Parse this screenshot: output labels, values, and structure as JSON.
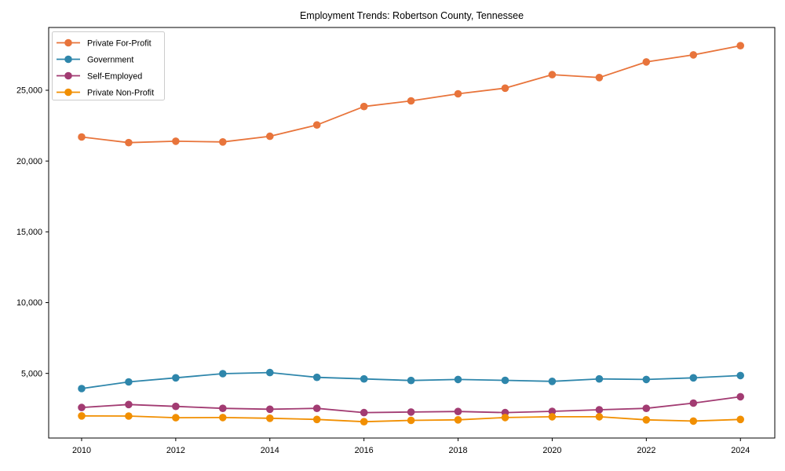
{
  "chart_data": {
    "type": "line",
    "title": "Employment Trends: Robertson County, Tennessee",
    "xlabel": "",
    "ylabel": "",
    "x": [
      2010,
      2011,
      2012,
      2013,
      2014,
      2015,
      2016,
      2017,
      2018,
      2019,
      2020,
      2021,
      2022,
      2023,
      2024
    ],
    "xticks": [
      2010,
      2012,
      2014,
      2016,
      2018,
      2020,
      2022,
      2024
    ],
    "xtick_labels": [
      "2010",
      "2012",
      "2014",
      "2016",
      "2018",
      "2020",
      "2022",
      "2024"
    ],
    "yticks": [
      5000,
      10000,
      15000,
      20000,
      25000
    ],
    "ytick_labels": [
      "5,000",
      "10,000",
      "15,000",
      "20,000",
      "25,000"
    ],
    "xlim": [
      2009.3,
      2024.73
    ],
    "ylim": [
      435,
      29435
    ],
    "grid": false,
    "legend_position": "upper-left",
    "marker": "circle",
    "axis_color": "#000000",
    "legend_border_color": "#cccccc",
    "series": [
      {
        "name": "Private For-Profit",
        "color": "#E8743B",
        "values": [
          21700,
          21300,
          21400,
          21350,
          21750,
          22550,
          23850,
          24250,
          24750,
          25150,
          26100,
          25900,
          27000,
          27500,
          28150
        ]
      },
      {
        "name": "Government",
        "color": "#2E86AB",
        "values": [
          3930,
          4400,
          4690,
          4980,
          5060,
          4720,
          4610,
          4500,
          4570,
          4510,
          4440,
          4610,
          4570,
          4690,
          4850
        ]
      },
      {
        "name": "Self-Employed",
        "color": "#A23B72",
        "values": [
          2590,
          2800,
          2670,
          2530,
          2470,
          2530,
          2230,
          2270,
          2310,
          2230,
          2320,
          2430,
          2530,
          2900,
          3350
        ]
      },
      {
        "name": "Private Non-Profit",
        "color": "#F18F01",
        "values": [
          2000,
          1990,
          1870,
          1880,
          1830,
          1750,
          1590,
          1680,
          1720,
          1880,
          1940,
          1940,
          1720,
          1630,
          1750
        ]
      }
    ]
  }
}
